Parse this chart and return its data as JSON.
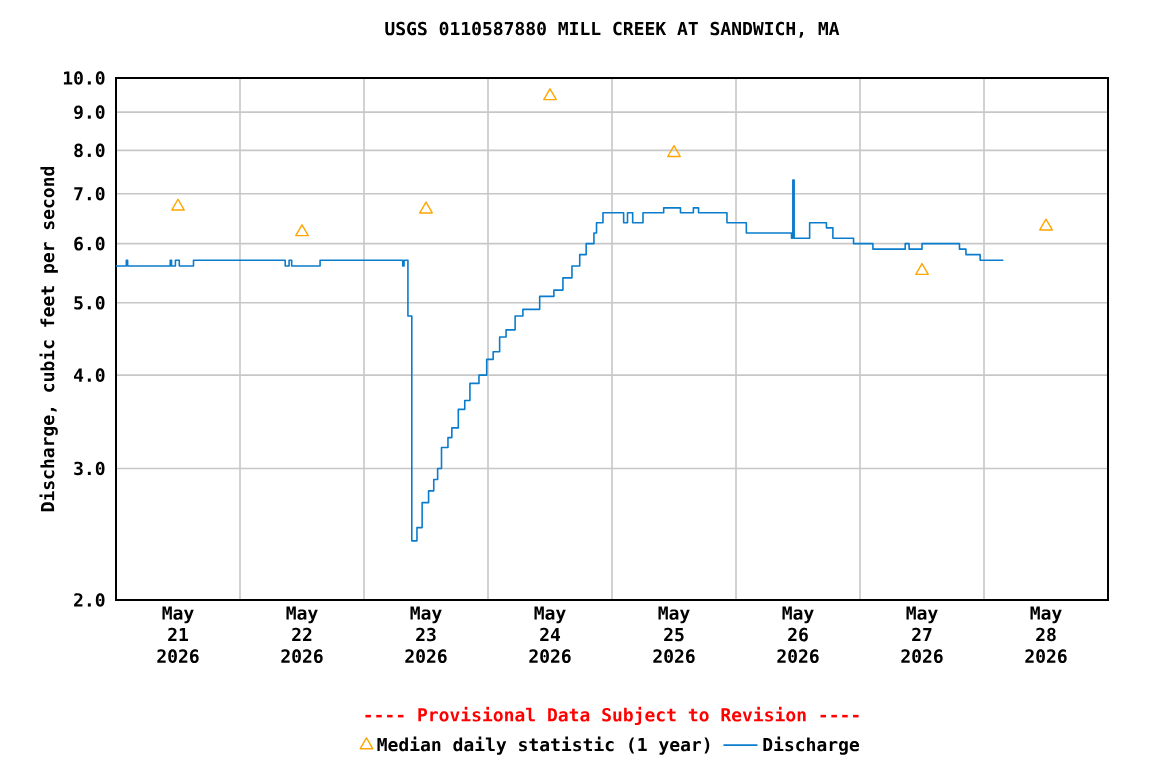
{
  "chart_data": {
    "type": "step",
    "title": "USGS 0110587880 MILL CREEK AT SANDWICH, MA",
    "ylabel": "Discharge, cubic feet per second",
    "annotations": [
      "---- Provisional Data Subject to Revision ----"
    ],
    "log": "y",
    "grid": true,
    "legend": "bottom",
    "xlim": [
      "2026-05-21T00:00",
      "2026-05-29T00:00"
    ],
    "ylim": [
      2,
      10
    ],
    "yticks": [
      {
        "value": 2,
        "label": "2.0"
      },
      {
        "value": 3,
        "label": "3.0"
      },
      {
        "value": 4,
        "label": "4.0"
      },
      {
        "value": 5,
        "label": "5.0"
      },
      {
        "value": 6,
        "label": "6.0"
      },
      {
        "value": 7,
        "label": "7.0"
      },
      {
        "value": 8,
        "label": "8.0"
      },
      {
        "value": 9,
        "label": "9.0"
      },
      {
        "value": 10,
        "label": "10.0"
      }
    ],
    "xticks": [
      {
        "value": "2026-05-21T00:00",
        "label": null
      },
      {
        "value": "2026-05-22T00:00",
        "label": null
      },
      {
        "value": "2026-05-23T00:00",
        "label": null
      },
      {
        "value": "2026-05-24T00:00",
        "label": null
      },
      {
        "value": "2026-05-25T00:00",
        "label": null
      },
      {
        "value": "2026-05-26T00:00",
        "label": null
      },
      {
        "value": "2026-05-27T00:00",
        "label": null
      },
      {
        "value": "2026-05-28T00:00",
        "label": null
      },
      {
        "value": "2026-05-29T00:00",
        "label": null
      },
      {
        "value": "2026-05-21T12:00",
        "label": "May 21 2026"
      },
      {
        "value": "2026-05-22T12:00",
        "label": "May 22 2026"
      },
      {
        "value": "2026-05-23T12:00",
        "label": "May 23 2026"
      },
      {
        "value": "2026-05-24T12:00",
        "label": "May 24 2026"
      },
      {
        "value": "2026-05-25T12:00",
        "label": "May 25 2026"
      },
      {
        "value": "2026-05-26T12:00",
        "label": "May 26 2026"
      },
      {
        "value": "2026-05-27T12:00",
        "label": "May 27 2026"
      },
      {
        "value": "2026-05-28T12:00",
        "label": "May 28 2026"
      }
    ],
    "series": [
      {
        "name": "Median daily statistic (1 year)",
        "type": "scatter",
        "marker": "triangle",
        "color": "#ffa500",
        "x": [
          "2026-05-21T12:00",
          "2026-05-22T12:00",
          "2026-05-23T12:00",
          "2026-05-24T12:00",
          "2026-05-25T12:00",
          "2026-05-26T12:00",
          "2026-05-27T12:00",
          "2026-05-28T12:00"
        ],
        "values": [
          6.73,
          6.22,
          6.67,
          9.46,
          7.94,
          null,
          5.52,
          6.33
        ]
      },
      {
        "name": "Discharge",
        "color": "#0a7ccc",
        "x": [
          "2026-05-21T00:00",
          "2026-05-21T02:00",
          "2026-05-21T02:15",
          "2026-05-21T10:30",
          "2026-05-21T10:45",
          "2026-05-21T11:30",
          "2026-05-21T12:15",
          "2026-05-21T15:00",
          "2026-05-22T08:45",
          "2026-05-22T09:30",
          "2026-05-22T10:00",
          "2026-05-22T15:30",
          "2026-05-23T07:30",
          "2026-05-23T07:45",
          "2026-05-23T08:30",
          "2026-05-23T09:15",
          "2026-05-23T10:15",
          "2026-05-23T11:15",
          "2026-05-23T12:30",
          "2026-05-23T13:30",
          "2026-05-23T14:15",
          "2026-05-23T15:00",
          "2026-05-23T16:15",
          "2026-05-23T17:00",
          "2026-05-23T18:15",
          "2026-05-23T19:30",
          "2026-05-23T20:30",
          "2026-05-23T22:15",
          "2026-05-23T23:45",
          "2026-05-24T01:00",
          "2026-05-24T02:15",
          "2026-05-24T03:30",
          "2026-05-24T05:15",
          "2026-05-24T06:45",
          "2026-05-24T10:00",
          "2026-05-24T12:45",
          "2026-05-24T14:30",
          "2026-05-24T16:15",
          "2026-05-24T17:45",
          "2026-05-24T19:00",
          "2026-05-24T20:30",
          "2026-05-24T21:00",
          "2026-05-24T22:15",
          "2026-05-25T02:15",
          "2026-05-25T03:00",
          "2026-05-25T04:00",
          "2026-05-25T06:00",
          "2026-05-25T10:00",
          "2026-05-25T13:15",
          "2026-05-25T15:45",
          "2026-05-25T16:45",
          "2026-05-25T22:15",
          "2026-05-26T02:00",
          "2026-05-26T10:45",
          "2026-05-26T11:00",
          "2026-05-26T11:15",
          "2026-05-26T14:15",
          "2026-05-26T17:30",
          "2026-05-26T18:45",
          "2026-05-26T22:45",
          "2026-05-27T02:30",
          "2026-05-27T08:45",
          "2026-05-27T09:30",
          "2026-05-27T12:00",
          "2026-05-27T19:15",
          "2026-05-27T20:30",
          "2026-05-27T23:15",
          "2026-05-28T03:45"
        ],
        "values": [
          5.6,
          5.7,
          5.6,
          5.7,
          5.6,
          5.7,
          5.6,
          5.7,
          5.6,
          5.7,
          5.6,
          5.7,
          5.6,
          5.7,
          4.8,
          2.4,
          2.5,
          2.7,
          2.8,
          2.9,
          3.0,
          3.2,
          3.3,
          3.4,
          3.6,
          3.7,
          3.9,
          4.0,
          4.2,
          4.3,
          4.5,
          4.6,
          4.8,
          4.9,
          5.1,
          5.2,
          5.4,
          5.6,
          5.8,
          6.0,
          6.2,
          6.4,
          6.6,
          6.4,
          6.6,
          6.4,
          6.6,
          6.7,
          6.6,
          6.7,
          6.6,
          6.4,
          6.2,
          6.1,
          7.3,
          6.1,
          6.4,
          6.3,
          6.1,
          6.0,
          5.9,
          6.0,
          5.9,
          6.0,
          5.9,
          5.8,
          5.7,
          5.7
        ]
      }
    ]
  }
}
